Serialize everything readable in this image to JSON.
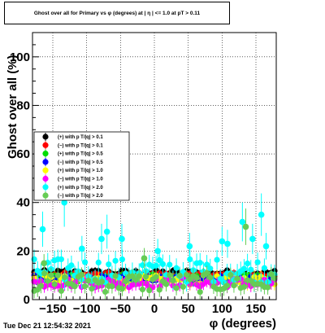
{
  "chart_data": {
    "type": "scatter",
    "title": "Ghost over all for Primary vs φ (degrees) at | η | <= 1.0 at pT > 0.11",
    "xlabel": "φ (degrees)",
    "ylabel": "Ghost over all (%)",
    "xlim": [
      -180,
      180
    ],
    "ylim": [
      0,
      110
    ],
    "xticks": [
      -150,
      -100,
      -50,
      0,
      50,
      100,
      150
    ],
    "xtick_labels": [
      "−150",
      "−100",
      "−50",
      "0",
      "50",
      "100",
      "150"
    ],
    "yticks": [
      0,
      20,
      40,
      60,
      80,
      100
    ],
    "ytick_labels": [
      "0",
      "20",
      "40",
      "60",
      "80",
      "100"
    ],
    "grid": true,
    "legend_position": "center-left",
    "series": [
      {
        "name": "(+) with p T/|q| > 0.1",
        "color": "#000000",
        "baseline": 11,
        "spread": 1.2,
        "errbar": 1.5
      },
      {
        "name": "(−) with p T/|q| > 0.1",
        "color": "#ff0000",
        "baseline": 10,
        "spread": 1.2,
        "errbar": 1.5
      },
      {
        "name": "(+) with p T/|q| > 0.5",
        "color": "#00dd00",
        "baseline": 9,
        "spread": 1.5,
        "errbar": 2
      },
      {
        "name": "(−) with p T/|q| > 0.5",
        "color": "#0000ff",
        "baseline": 8.5,
        "spread": 1.5,
        "errbar": 2
      },
      {
        "name": "(+) with p T/|q| > 1.0",
        "color": "#ffff00",
        "baseline": 8,
        "spread": 2,
        "errbar": 2.5
      },
      {
        "name": "(−) with p T/|q| > 1.0",
        "color": "#ff00ff",
        "baseline": 7,
        "spread": 2,
        "errbar": 2.5
      },
      {
        "name": "(+) with p T/|q| > 2.0",
        "color": "#00ffff",
        "baseline": 12,
        "spread": 5,
        "errbar": 4
      },
      {
        "name": "(−) with p T/|q| > 2.0",
        "color": "#66cc55",
        "baseline": 7,
        "spread": 4,
        "errbar": 3
      }
    ],
    "cyan_outliers": [
      {
        "x": -165,
        "y": 29
      },
      {
        "x": -133,
        "y": 40
      },
      {
        "x": -107,
        "y": 21
      },
      {
        "x": -78,
        "y": 25
      },
      {
        "x": -70,
        "y": 28
      },
      {
        "x": -48,
        "y": 25
      },
      {
        "x": 5,
        "y": 20
      },
      {
        "x": 52,
        "y": 22
      },
      {
        "x": 100,
        "y": 24
      },
      {
        "x": 108,
        "y": 23
      },
      {
        "x": 130,
        "y": 32
      },
      {
        "x": 145,
        "y": 25
      },
      {
        "x": 158,
        "y": 35
      },
      {
        "x": 165,
        "y": 22
      }
    ],
    "green_outliers": [
      {
        "x": -163,
        "y": 15
      },
      {
        "x": -15,
        "y": 17
      },
      {
        "x": 135,
        "y": 30
      }
    ]
  },
  "footer": {
    "timestamp": "Tue Dec 21 12:54:32 2021"
  }
}
